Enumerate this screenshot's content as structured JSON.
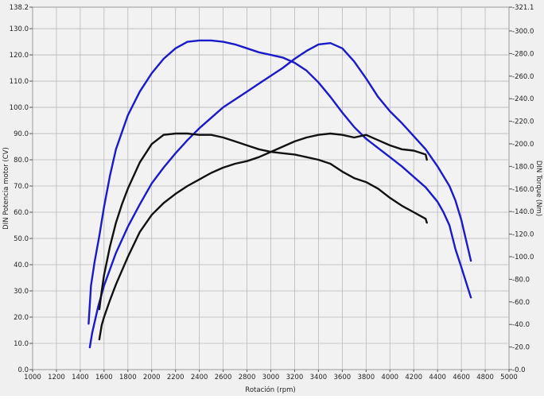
{
  "chart_data": {
    "type": "line",
    "title": "",
    "xlabel": "Rotación (rpm)",
    "ylabel_left": "DIN Potencia motor (CV)",
    "ylabel_right": "DIN Torque (Nm)",
    "xlim": [
      1000,
      5000
    ],
    "ylim_left": [
      0,
      138.2
    ],
    "ylim_right": [
      0,
      321.1
    ],
    "grid": true,
    "x_ticks": [
      "1000",
      "1200",
      "1400",
      "1600",
      "1800",
      "2000",
      "2200",
      "2400",
      "2600",
      "2800",
      "3000",
      "3200",
      "3400",
      "3600",
      "3800",
      "4000",
      "4200",
      "4400",
      "4600",
      "4800",
      "5000"
    ],
    "y_ticks_left": [
      "0.0",
      "10.0",
      "20.0",
      "30.0",
      "40.0",
      "50.0",
      "60.0",
      "70.0",
      "80.0",
      "90.0",
      "100.0",
      "110.0",
      "120.0",
      "130.0",
      "138.2"
    ],
    "y_ticks_right": [
      "0.0",
      "20.0",
      "40.0",
      "60.0",
      "80.0",
      "100.0",
      "120.0",
      "140.0",
      "160.0",
      "180.0",
      "200.0",
      "220.0",
      "240.0",
      "260.0",
      "280.0",
      "300.0",
      "321.1"
    ],
    "colors": {
      "modified": "#1a1ac8",
      "stock": "#111111"
    },
    "series": [
      {
        "axis": "left",
        "color_key": "modified",
        "x": [
          1480,
          1500,
          1550,
          1600,
          1700,
          1800,
          1900,
          2000,
          2100,
          2200,
          2300,
          2400,
          2500,
          2600,
          2700,
          2800,
          2900,
          3000,
          3100,
          3200,
          3300,
          3400,
          3500,
          3600,
          3700,
          3800,
          3900,
          4000,
          4100,
          4200,
          4300,
          4400,
          4500,
          4550,
          4600,
          4680
        ],
        "y": [
          8.5,
          14,
          24,
          32,
          44.5,
          54.5,
          63,
          71,
          77,
          82.5,
          87.5,
          92,
          96,
          100,
          103,
          106,
          109,
          112,
          115,
          118.5,
          121.5,
          124,
          124.5,
          122.5,
          117.5,
          111,
          104,
          98.5,
          94,
          89,
          84,
          77.5,
          70,
          64.5,
          57,
          41.5
        ]
      },
      {
        "axis": "left",
        "color_key": "modified",
        "x": [
          1470,
          1490,
          1520,
          1560,
          1600,
          1650,
          1700,
          1800,
          1900,
          2000,
          2100,
          2200,
          2300,
          2400,
          2500,
          2600,
          2700,
          2800,
          2900,
          3000,
          3100,
          3200,
          3300,
          3400,
          3500,
          3600,
          3700,
          3800,
          3900,
          4000,
          4100,
          4200,
          4300,
          4400,
          4450,
          4500,
          4550,
          4600,
          4680
        ],
        "y": [
          17.5,
          32,
          41,
          51,
          62,
          74,
          84,
          97,
          106,
          113,
          118.5,
          122.5,
          125,
          125.5,
          125.5,
          125,
          124,
          122.5,
          121,
          120,
          119,
          117,
          114,
          109.5,
          104,
          98,
          92.5,
          88,
          84.5,
          81,
          77.5,
          73.5,
          69.5,
          64,
          60,
          55,
          46,
          39,
          27.5
        ]
      },
      {
        "axis": "left",
        "color_key": "stock",
        "x": [
          1560,
          1580,
          1600,
          1650,
          1700,
          1800,
          1900,
          2000,
          2100,
          2200,
          2300,
          2400,
          2500,
          2600,
          2700,
          2800,
          2900,
          3000,
          3100,
          3200,
          3300,
          3400,
          3500,
          3600,
          3700,
          3800,
          3900,
          4000,
          4100,
          4200,
          4300,
          4310
        ],
        "y": [
          11.5,
          17,
          20,
          26.5,
          32.5,
          43,
          52.5,
          59,
          63.5,
          67,
          70,
          72.5,
          75,
          77,
          78.5,
          79.5,
          81,
          83,
          85,
          87,
          88.5,
          89.5,
          90,
          89.5,
          88.5,
          89.5,
          87.5,
          85.5,
          84,
          83.5,
          82,
          80
        ]
      },
      {
        "axis": "left",
        "color_key": "stock",
        "x": [
          1560,
          1580,
          1600,
          1650,
          1700,
          1750,
          1800,
          1900,
          2000,
          2100,
          2200,
          2300,
          2400,
          2500,
          2600,
          2700,
          2800,
          2900,
          3000,
          3100,
          3200,
          3300,
          3400,
          3500,
          3600,
          3700,
          3800,
          3900,
          4000,
          4100,
          4200,
          4300,
          4310
        ],
        "y": [
          23,
          30,
          36,
          47,
          56,
          63,
          69,
          79,
          86,
          89.5,
          90,
          90,
          89.5,
          89.5,
          88.5,
          87,
          85.5,
          84,
          83,
          82.5,
          82,
          81,
          80,
          78.5,
          75.5,
          73,
          71.5,
          69,
          65.5,
          62.5,
          60,
          57.5,
          56
        ]
      }
    ]
  }
}
